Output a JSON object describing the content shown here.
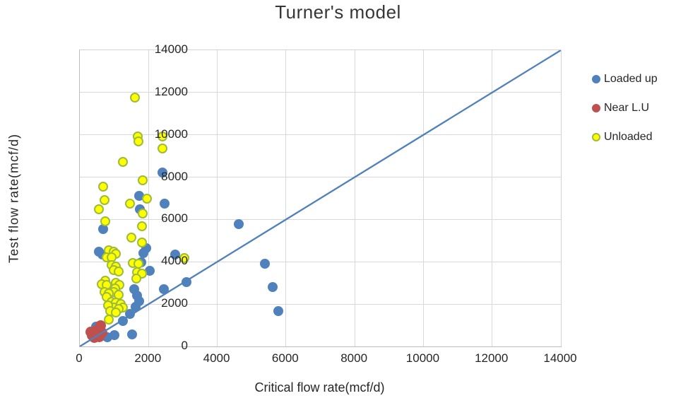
{
  "title": "Turner's model",
  "axes": {
    "x": {
      "label": "Critical flow rate(mcf/d)",
      "ticks": [
        "0",
        "2000",
        "4000",
        "6000",
        "8000",
        "10000",
        "12000",
        "14000"
      ]
    },
    "y": {
      "label": "Test flow rate(mcf/d)",
      "ticks": [
        "0",
        "2000",
        "4000",
        "6000",
        "8000",
        "10000",
        "12000",
        "14000"
      ]
    }
  },
  "legend": {
    "items": [
      {
        "label": "Loaded up",
        "color": "#4f81bd",
        "border": "#4f81bd"
      },
      {
        "label": "Near L.U",
        "color": "#c0504d",
        "border": "#c0504d"
      },
      {
        "label": "Unloaded",
        "color": "#ffff00",
        "border": "#9cbb3c"
      }
    ]
  },
  "chart_data": {
    "type": "scatter",
    "title": "Turner's model",
    "xlabel": "Critical flow rate(mcf/d)",
    "ylabel": "Test flow rate(mcf/d)",
    "xlim": [
      0,
      14000
    ],
    "ylim": [
      0,
      14000
    ],
    "grid": true,
    "grid_step": 2000,
    "legend_position": "right",
    "reference_line": {
      "from": [
        0,
        0
      ],
      "to": [
        14000,
        14000
      ],
      "color": "#4f81bd",
      "meaning": "y = x (test rate equals critical rate)"
    },
    "series": [
      {
        "name": "Loaded up",
        "marker_color": "#4f81bd",
        "points": [
          [
            2414,
            8220
          ],
          [
            1720,
            7130
          ],
          [
            2476,
            6740
          ],
          [
            1755,
            6470
          ],
          [
            670,
            5530
          ],
          [
            4620,
            5780
          ],
          [
            655,
            4360
          ],
          [
            560,
            4490
          ],
          [
            1858,
            4420
          ],
          [
            1926,
            4650
          ],
          [
            2771,
            4330
          ],
          [
            5390,
            3900
          ],
          [
            1790,
            3975
          ],
          [
            2029,
            3590
          ],
          [
            3110,
            3030
          ],
          [
            5620,
            2790
          ],
          [
            2450,
            2700
          ],
          [
            5770,
            1680
          ],
          [
            1576,
            2710
          ],
          [
            1658,
            2410
          ],
          [
            1720,
            2143
          ],
          [
            1617,
            1877
          ],
          [
            1452,
            1543
          ],
          [
            1246,
            1210
          ],
          [
            464,
            940
          ],
          [
            587,
            480
          ],
          [
            793,
            420
          ],
          [
            999,
            533
          ],
          [
            1514,
            553
          ]
        ]
      },
      {
        "name": "Near L.U",
        "marker_color": "#c0504d",
        "points": [
          [
            310,
            700
          ],
          [
            480,
            755
          ],
          [
            560,
            450
          ],
          [
            416,
            420
          ],
          [
            650,
            640
          ],
          [
            600,
            990
          ],
          [
            350,
            520
          ]
        ]
      },
      {
        "name": "Unloaded",
        "marker_color": "#ffff00",
        "marker_border": "#9cbb3c",
        "points": [
          [
            1620,
            11750
          ],
          [
            1700,
            9920
          ],
          [
            1720,
            9680
          ],
          [
            2406,
            9920
          ],
          [
            2406,
            9343
          ],
          [
            1273,
            8700
          ],
          [
            1840,
            7850
          ],
          [
            690,
            7550
          ],
          [
            1960,
            6970
          ],
          [
            738,
            6890
          ],
          [
            1480,
            6740
          ],
          [
            573,
            6480
          ],
          [
            1840,
            6270
          ],
          [
            746,
            5890
          ],
          [
            1823,
            5650
          ],
          [
            1514,
            5140
          ],
          [
            1820,
            4895
          ],
          [
            861,
            4533
          ],
          [
            999,
            4477
          ],
          [
            1067,
            4367
          ],
          [
            793,
            4200
          ],
          [
            931,
            4177
          ],
          [
            3045,
            4167
          ],
          [
            1549,
            3940
          ],
          [
            1720,
            3900
          ],
          [
            931,
            3810
          ],
          [
            1067,
            3753
          ],
          [
            999,
            3587
          ],
          [
            1137,
            3533
          ],
          [
            1685,
            3477
          ],
          [
            1823,
            3420
          ],
          [
            1652,
            3200
          ],
          [
            758,
            3100
          ],
          [
            655,
            2933
          ],
          [
            1067,
            2987
          ],
          [
            793,
            2877
          ],
          [
            1170,
            2877
          ],
          [
            1034,
            2710
          ],
          [
            725,
            2543
          ],
          [
            999,
            2543
          ],
          [
            861,
            2487
          ],
          [
            1137,
            2433
          ],
          [
            793,
            2320
          ],
          [
            931,
            2100
          ],
          [
            1067,
            2043
          ],
          [
            1205,
            1987
          ],
          [
            999,
            1820
          ],
          [
            1273,
            1820
          ],
          [
            1137,
            1767
          ],
          [
            828,
            1920
          ],
          [
            896,
            1643
          ],
          [
            1067,
            1587
          ],
          [
            861,
            1253
          ]
        ]
      }
    ]
  }
}
